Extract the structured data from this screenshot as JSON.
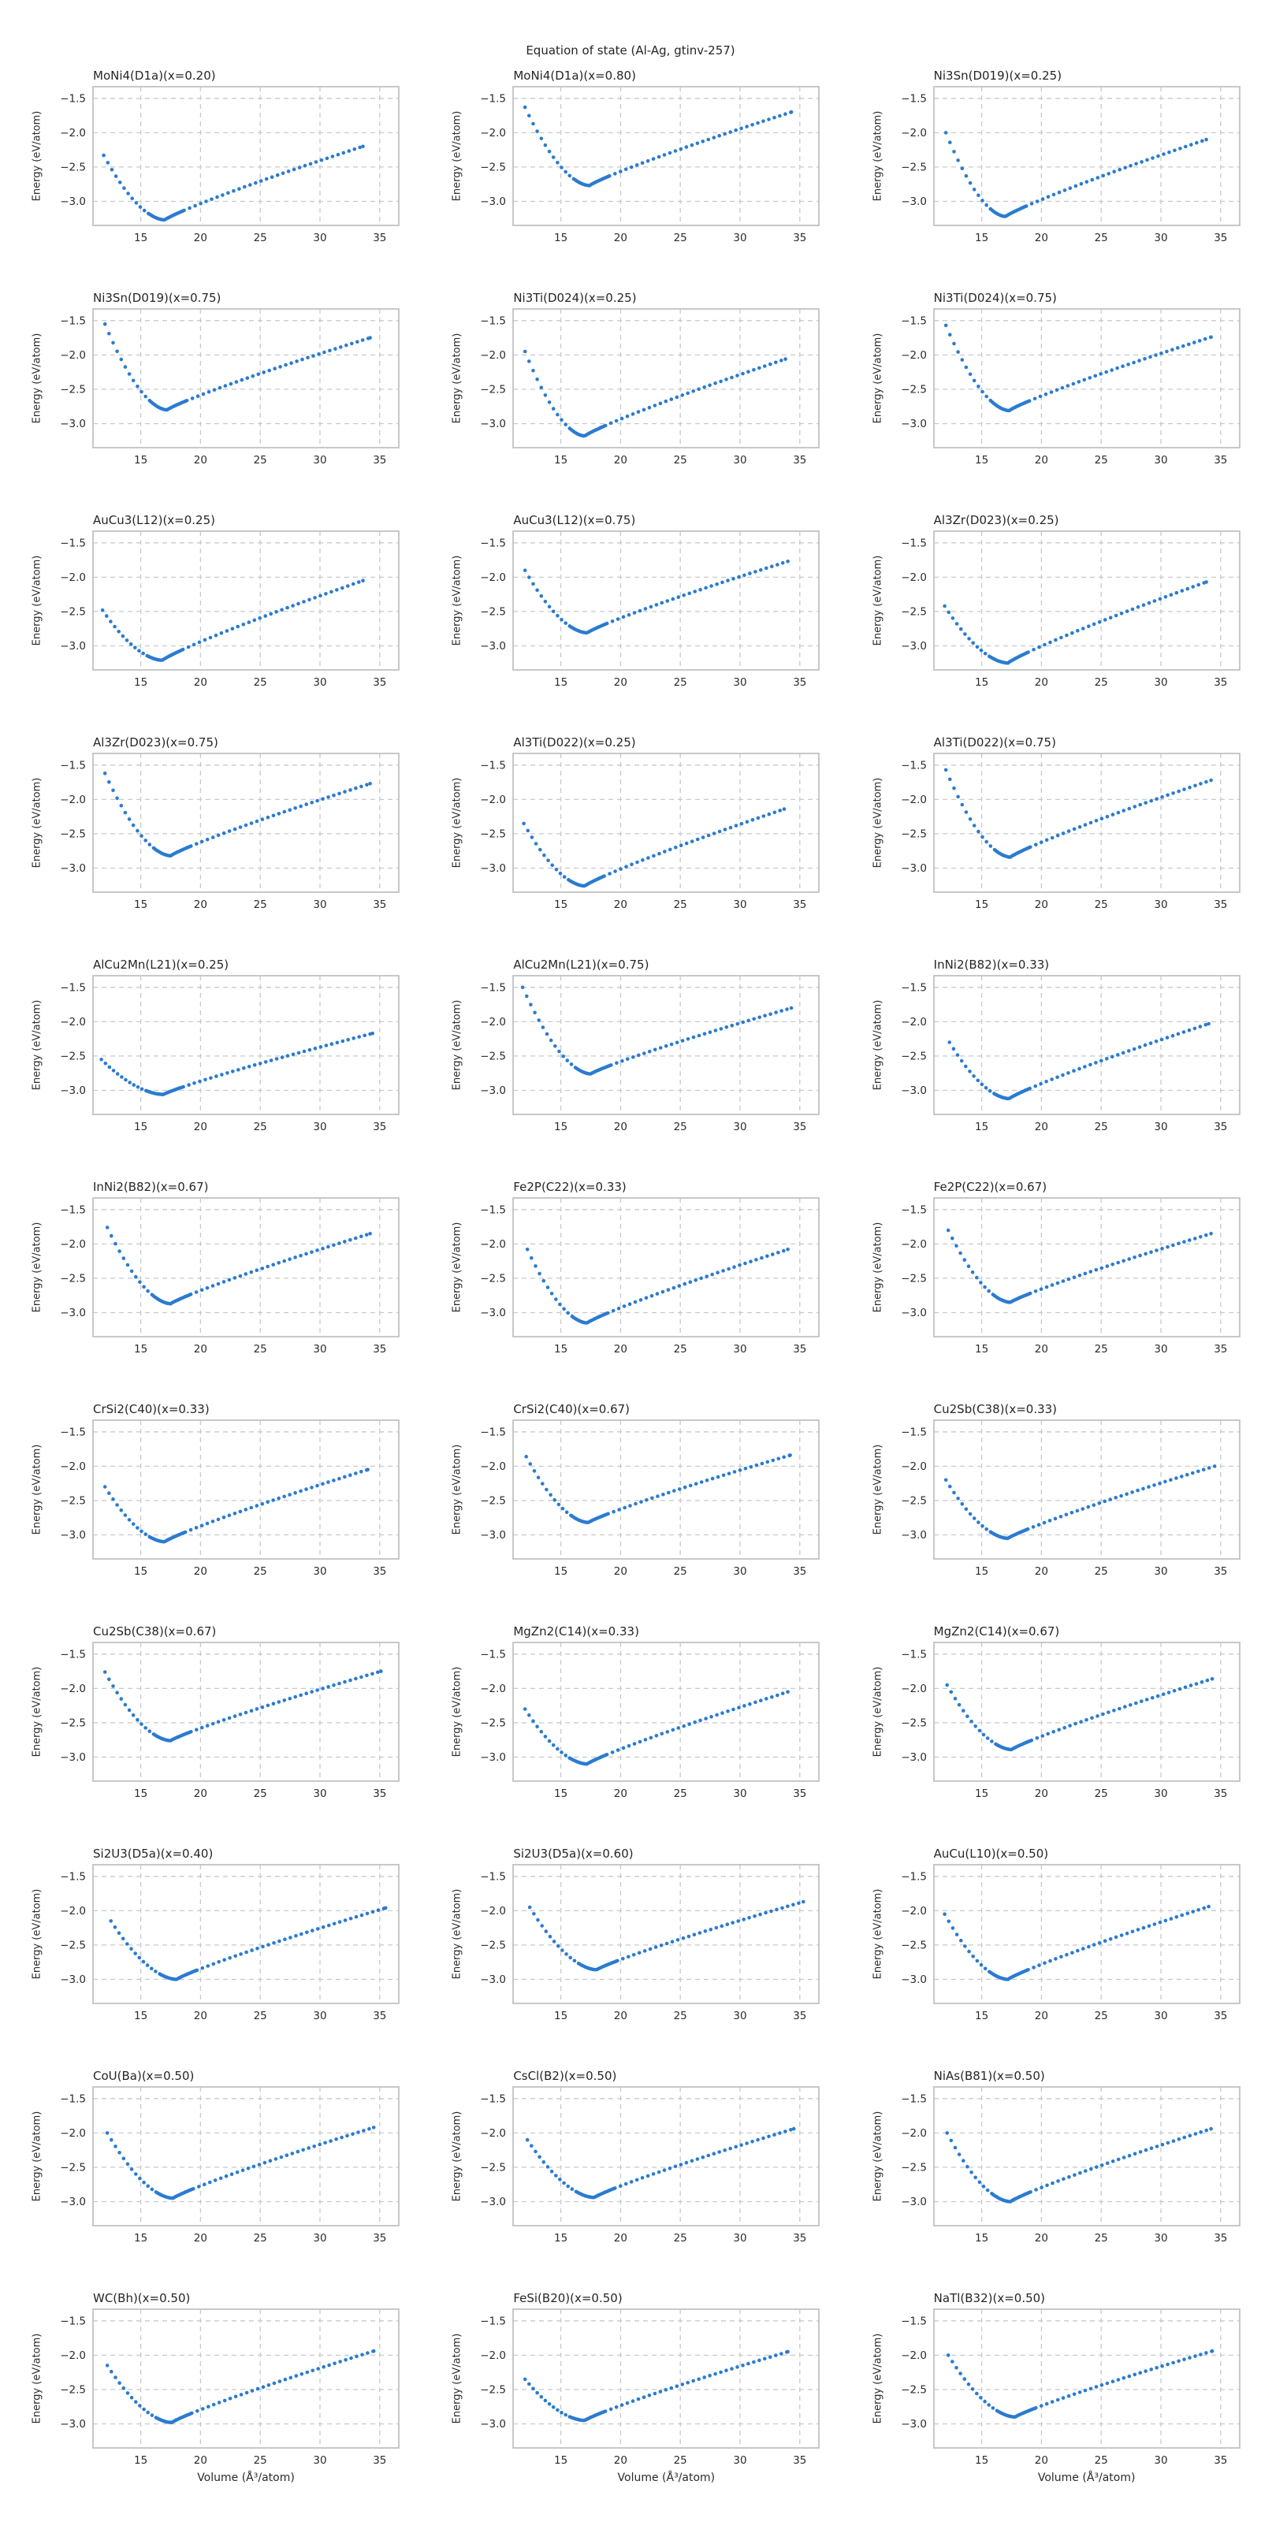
{
  "figure": {
    "suptitle": "Equation of state (Al-Ag, gtinv-257)",
    "background": "#ffffff"
  },
  "chart_data": {
    "type": "scatter",
    "layout": {
      "rows": 11,
      "cols": 3
    },
    "suptitle": "Equation of state (Al-Ag, gtinv-257)",
    "xlabel": "Volume (Å³/atom)",
    "ylabel": "Energy (eV/atom)",
    "xticks": [
      15,
      20,
      25,
      30,
      35
    ],
    "yticks": [
      -1.5,
      -2.0,
      -2.5,
      -3.0
    ],
    "xlim": [
      11.0,
      36.6
    ],
    "ylim": [
      -3.35,
      -1.33
    ],
    "grid": {
      "style": "dashed",
      "color": "#c9c9c9"
    },
    "spine_color": "#c2c2c2",
    "text_color": "#2b2b2b",
    "marker": {
      "color": "#2b7bd0",
      "radius_px": 2.3
    },
    "sampling": {
      "step_left": 0.34,
      "step_dense": 0.13,
      "step_right": 0.46,
      "dense_halfwidth": 1.6
    },
    "model": {
      "p_left": 1.75,
      "p_right": 0.88,
      "description": "E(V)=e0+(e_left-e0)*((v0-V)/(v0-v_start))^p_left for V<v0; E(V)=e0+(e_right-e0)*((V-v0)/(v_end-v0))^p_right for V>=v0"
    },
    "subplots": [
      {
        "title": "MoNi4(D1a)(x=0.20)",
        "v_start": 11.9,
        "v0": 17.0,
        "v_end": 33.6,
        "e_left": -2.33,
        "e0": -3.27,
        "e_right": -2.2
      },
      {
        "title": "MoNi4(D1a)(x=0.80)",
        "v_start": 12.0,
        "v0": 17.4,
        "v_end": 34.3,
        "e_left": -1.63,
        "e0": -2.77,
        "e_right": -1.7
      },
      {
        "title": "Ni3Sn(D019)(x=0.25)",
        "v_start": 12.0,
        "v0": 17.0,
        "v_end": 33.8,
        "e_left": -2.0,
        "e0": -3.22,
        "e_right": -2.1
      },
      {
        "title": "Ni3Sn(D019)(x=0.75)",
        "v_start": 12.0,
        "v0": 17.2,
        "v_end": 34.2,
        "e_left": -1.55,
        "e0": -2.8,
        "e_right": -1.75
      },
      {
        "title": "Ni3Ti(D024)(x=0.25)",
        "v_start": 12.0,
        "v0": 17.0,
        "v_end": 33.8,
        "e_left": -1.95,
        "e0": -3.18,
        "e_right": -2.06
      },
      {
        "title": "Ni3Ti(D024)(x=0.75)",
        "v_start": 12.0,
        "v0": 17.3,
        "v_end": 34.2,
        "e_left": -1.57,
        "e0": -2.81,
        "e_right": -1.74
      },
      {
        "title": "AuCu3(L12)(x=0.25)",
        "v_start": 11.8,
        "v0": 16.8,
        "v_end": 33.6,
        "e_left": -2.48,
        "e0": -3.21,
        "e_right": -2.05
      },
      {
        "title": "AuCu3(L12)(x=0.75)",
        "v_start": 12.0,
        "v0": 17.2,
        "v_end": 34.0,
        "e_left": -1.9,
        "e0": -2.81,
        "e_right": -1.77
      },
      {
        "title": "Al3Zr(D023)(x=0.25)",
        "v_start": 11.9,
        "v0": 17.2,
        "v_end": 33.8,
        "e_left": -2.42,
        "e0": -3.25,
        "e_right": -2.07
      },
      {
        "title": "Al3Zr(D023)(x=0.75)",
        "v_start": 12.0,
        "v0": 17.5,
        "v_end": 34.2,
        "e_left": -1.62,
        "e0": -2.82,
        "e_right": -1.77
      },
      {
        "title": "Al3Ti(D022)(x=0.25)",
        "v_start": 11.9,
        "v0": 17.0,
        "v_end": 33.7,
        "e_left": -2.35,
        "e0": -3.26,
        "e_right": -2.14
      },
      {
        "title": "Al3Ti(D022)(x=0.75)",
        "v_start": 12.0,
        "v0": 17.4,
        "v_end": 34.2,
        "e_left": -1.57,
        "e0": -2.84,
        "e_right": -1.72
      },
      {
        "title": "AlCu2Mn(L21)(x=0.25)",
        "v_start": 11.7,
        "v0": 16.9,
        "v_end": 34.4,
        "e_left": -2.55,
        "e0": -3.06,
        "e_right": -2.17
      },
      {
        "title": "AlCu2Mn(L21)(x=0.75)",
        "v_start": 11.8,
        "v0": 17.5,
        "v_end": 34.3,
        "e_left": -1.5,
        "e0": -2.76,
        "e_right": -1.8
      },
      {
        "title": "InNi2(B82)(x=0.33)",
        "v_start": 12.3,
        "v0": 17.3,
        "v_end": 34.0,
        "e_left": -2.3,
        "e0": -3.12,
        "e_right": -2.03
      },
      {
        "title": "InNi2(B82)(x=0.67)",
        "v_start": 12.2,
        "v0": 17.5,
        "v_end": 34.2,
        "e_left": -1.76,
        "e0": -2.87,
        "e_right": -1.85
      },
      {
        "title": "Fe2P(C22)(x=0.33)",
        "v_start": 12.2,
        "v0": 17.2,
        "v_end": 34.0,
        "e_left": -2.08,
        "e0": -3.15,
        "e_right": -2.08
      },
      {
        "title": "Fe2P(C22)(x=0.67)",
        "v_start": 12.2,
        "v0": 17.4,
        "v_end": 34.2,
        "e_left": -1.8,
        "e0": -2.85,
        "e_right": -1.85
      },
      {
        "title": "CrSi2(C40)(x=0.33)",
        "v_start": 12.0,
        "v0": 17.0,
        "v_end": 34.0,
        "e_left": -2.3,
        "e0": -3.1,
        "e_right": -2.05
      },
      {
        "title": "CrSi2(C40)(x=0.67)",
        "v_start": 12.1,
        "v0": 17.3,
        "v_end": 34.2,
        "e_left": -1.86,
        "e0": -2.82,
        "e_right": -1.84
      },
      {
        "title": "Cu2Sb(C38)(x=0.33)",
        "v_start": 12.0,
        "v0": 17.2,
        "v_end": 34.5,
        "e_left": -2.2,
        "e0": -3.05,
        "e_right": -2.0
      },
      {
        "title": "Cu2Sb(C38)(x=0.67)",
        "v_start": 12.0,
        "v0": 17.5,
        "v_end": 35.1,
        "e_left": -1.76,
        "e0": -2.76,
        "e_right": -1.75
      },
      {
        "title": "MgZn2(C14)(x=0.33)",
        "v_start": 12.0,
        "v0": 17.2,
        "v_end": 34.0,
        "e_left": -2.3,
        "e0": -3.1,
        "e_right": -2.05
      },
      {
        "title": "MgZn2(C14)(x=0.67)",
        "v_start": 12.1,
        "v0": 17.5,
        "v_end": 34.3,
        "e_left": -1.95,
        "e0": -2.89,
        "e_right": -1.86
      },
      {
        "title": "Si2U3(D5a)(x=0.40)",
        "v_start": 12.5,
        "v0": 18.0,
        "v_end": 35.5,
        "e_left": -2.15,
        "e0": -3.0,
        "e_right": -1.96
      },
      {
        "title": "Si2U3(D5a)(x=0.60)",
        "v_start": 12.4,
        "v0": 18.0,
        "v_end": 35.3,
        "e_left": -1.95,
        "e0": -2.86,
        "e_right": -1.87
      },
      {
        "title": "AuCu(L10)(x=0.50)",
        "v_start": 11.9,
        "v0": 17.2,
        "v_end": 34.0,
        "e_left": -2.05,
        "e0": -3.0,
        "e_right": -1.94
      },
      {
        "title": "CoU(Ba)(x=0.50)",
        "v_start": 12.2,
        "v0": 17.7,
        "v_end": 34.5,
        "e_left": -2.0,
        "e0": -2.95,
        "e_right": -1.92
      },
      {
        "title": "CsCl(B2)(x=0.50)",
        "v_start": 12.2,
        "v0": 17.8,
        "v_end": 34.5,
        "e_left": -2.1,
        "e0": -2.94,
        "e_right": -1.94
      },
      {
        "title": "NiAs(B81)(x=0.50)",
        "v_start": 12.1,
        "v0": 17.4,
        "v_end": 34.2,
        "e_left": -2.0,
        "e0": -3.0,
        "e_right": -1.94
      },
      {
        "title": "WC(Bh)(x=0.50)",
        "v_start": 12.2,
        "v0": 17.6,
        "v_end": 34.5,
        "e_left": -2.15,
        "e0": -2.98,
        "e_right": -1.94
      },
      {
        "title": "FeSi(B20)(x=0.50)",
        "v_start": 12.0,
        "v0": 17.0,
        "v_end": 34.0,
        "e_left": -2.35,
        "e0": -2.95,
        "e_right": -1.95
      },
      {
        "title": "NaTl(B32)(x=0.50)",
        "v_start": 12.2,
        "v0": 17.8,
        "v_end": 34.3,
        "e_left": -2.0,
        "e0": -2.9,
        "e_right": -1.94
      }
    ]
  }
}
